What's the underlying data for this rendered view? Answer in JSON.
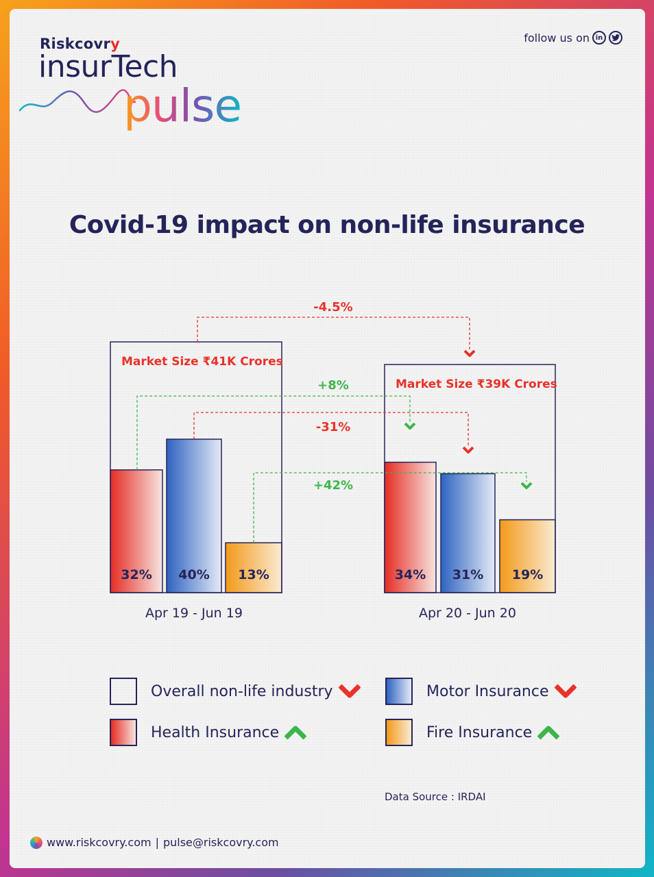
{
  "header": {
    "brand_prefix": "Riskcovr",
    "brand_suffix": "y",
    "logo_line1": "insurTech",
    "logo_line2": "pulse",
    "follow_label": "follow us on",
    "social_icons": [
      "linkedin-icon",
      "twitter-icon"
    ]
  },
  "title": "Covid-19 impact on non-life insurance",
  "chart_data": {
    "type": "bar",
    "categories": [
      "Apr 19 - Jun 19",
      "Apr 20 - Jun 20"
    ],
    "series": [
      {
        "name": "Health Insurance",
        "values": [
          32,
          34
        ],
        "labels": [
          "32%",
          "34%"
        ],
        "color": "#e8322a"
      },
      {
        "name": "Motor Insurance",
        "values": [
          40,
          31
        ],
        "labels": [
          "40%",
          "31%"
        ],
        "color": "#3a6fc4"
      },
      {
        "name": "Fire Insurance",
        "values": [
          13,
          19
        ],
        "labels": [
          "13%",
          "19%"
        ],
        "color": "#f5a623"
      }
    ],
    "market_size": [
      "Market Size ₹41K Crores",
      "Market Size ₹39K Crores"
    ],
    "changes": [
      {
        "label": "-4.5%",
        "series": "Overall non-life industry",
        "direction": "down",
        "color": "#e8322a"
      },
      {
        "label": "+8%",
        "series": "Health Insurance",
        "direction": "up",
        "color": "#3db54a"
      },
      {
        "label": "-31%",
        "series": "Motor Insurance",
        "direction": "down",
        "color": "#e8322a"
      },
      {
        "label": "+42%",
        "series": "Fire Insurance",
        "direction": "up",
        "color": "#3db54a"
      }
    ],
    "ylim": [
      0,
      50
    ]
  },
  "legend": [
    {
      "label": "Overall non-life industry",
      "trend": "down"
    },
    {
      "label": "Motor Insurance",
      "trend": "down"
    },
    {
      "label": "Health Insurance",
      "trend": "up"
    },
    {
      "label": "Fire Insurance",
      "trend": "up"
    }
  ],
  "source": "Data Source : IRDAI",
  "footer": {
    "website": "www.riskcovry.com",
    "separator": "|",
    "email": "pulse@riskcovry.com"
  },
  "colors": {
    "navy": "#24245a",
    "red": "#e8322a",
    "green": "#3db54a",
    "blue": "#3a6fc4",
    "orange": "#f5a623"
  }
}
